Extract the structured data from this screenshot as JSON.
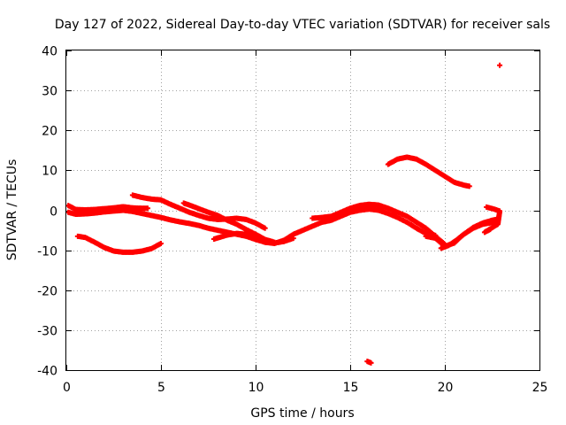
{
  "chart_data": {
    "type": "scatter",
    "title": "Day 127 of 2022, Sidereal Day-to-day VTEC variation (SDTVAR) for receiver sals",
    "xlabel": "GPS time / hours",
    "ylabel": "SDTVAR / TECUs",
    "xlim": [
      0,
      25
    ],
    "ylim": [
      -40,
      40
    ],
    "xticks": [
      0,
      5,
      10,
      15,
      20,
      25
    ],
    "yticks": [
      -40,
      -30,
      -20,
      -10,
      0,
      10,
      20,
      30,
      40
    ],
    "grid": true,
    "marker": "plus",
    "color": "#ff0000",
    "series": [
      {
        "name": "track-1",
        "points": [
          [
            0.1,
            1.2
          ],
          [
            0.5,
            0.2
          ],
          [
            1.0,
            0.1
          ],
          [
            1.5,
            0.2
          ],
          [
            2.0,
            0.4
          ],
          [
            2.5,
            0.6
          ],
          [
            3.0,
            0.9
          ],
          [
            3.5,
            0.6
          ],
          [
            4.0,
            0.5
          ],
          [
            4.3,
            0.5
          ]
        ]
      },
      {
        "name": "track-2",
        "points": [
          [
            0.1,
            -0.5
          ],
          [
            0.5,
            -1.0
          ],
          [
            1.0,
            -0.9
          ],
          [
            1.5,
            -0.7
          ],
          [
            2.0,
            -0.4
          ],
          [
            2.5,
            -0.2
          ],
          [
            3.0,
            0.0
          ],
          [
            3.5,
            -0.3
          ],
          [
            4.0,
            -0.8
          ],
          [
            4.5,
            -1.3
          ],
          [
            5.0,
            -1.8
          ],
          [
            5.5,
            -2.4
          ],
          [
            6.0,
            -2.9
          ],
          [
            6.5,
            -3.3
          ],
          [
            7.0,
            -3.8
          ],
          [
            7.5,
            -4.5
          ],
          [
            8.0,
            -5.0
          ],
          [
            8.5,
            -5.5
          ],
          [
            9.0,
            -6.0
          ],
          [
            9.5,
            -6.5
          ],
          [
            10.0,
            -7.3
          ],
          [
            10.5,
            -8.0
          ],
          [
            11.0,
            -8.2
          ],
          [
            11.5,
            -7.8
          ],
          [
            12.0,
            -7.0
          ]
        ]
      },
      {
        "name": "track-3",
        "points": [
          [
            0.6,
            -6.5
          ],
          [
            1.0,
            -6.8
          ],
          [
            1.5,
            -8.0
          ],
          [
            2.0,
            -9.3
          ],
          [
            2.5,
            -10.2
          ],
          [
            3.0,
            -10.5
          ],
          [
            3.5,
            -10.5
          ],
          [
            4.0,
            -10.2
          ],
          [
            4.5,
            -9.6
          ],
          [
            5.0,
            -8.3
          ]
        ]
      },
      {
        "name": "track-4",
        "points": [
          [
            3.5,
            3.8
          ],
          [
            4.0,
            3.2
          ],
          [
            4.5,
            2.8
          ],
          [
            5.0,
            2.6
          ],
          [
            5.5,
            1.5
          ],
          [
            6.0,
            0.5
          ],
          [
            6.5,
            -0.5
          ],
          [
            7.0,
            -1.3
          ],
          [
            7.5,
            -2.0
          ],
          [
            8.0,
            -2.3
          ],
          [
            8.5,
            -2.2
          ],
          [
            9.0,
            -2.0
          ],
          [
            9.5,
            -2.3
          ],
          [
            10.0,
            -3.2
          ],
          [
            10.5,
            -4.5
          ]
        ]
      },
      {
        "name": "track-5",
        "points": [
          [
            6.2,
            1.8
          ],
          [
            6.5,
            1.3
          ],
          [
            7.0,
            0.4
          ],
          [
            7.5,
            -0.5
          ],
          [
            8.0,
            -1.3
          ],
          [
            8.5,
            -2.5
          ],
          [
            9.0,
            -3.5
          ],
          [
            9.5,
            -4.8
          ],
          [
            10.0,
            -6.0
          ],
          [
            10.5,
            -7.3
          ],
          [
            11.0,
            -8.0
          ]
        ]
      },
      {
        "name": "track-6",
        "points": [
          [
            7.8,
            -7.2
          ],
          [
            8.5,
            -6.2
          ],
          [
            9.0,
            -5.8
          ],
          [
            9.5,
            -6.0
          ],
          [
            10.0,
            -6.8
          ],
          [
            10.5,
            -8.0
          ],
          [
            11.0,
            -8.3
          ],
          [
            11.5,
            -7.5
          ],
          [
            12.0,
            -6.0
          ],
          [
            12.5,
            -5.0
          ],
          [
            13.0,
            -4.0
          ],
          [
            13.5,
            -3.0
          ],
          [
            14.0,
            -2.5
          ],
          [
            14.5,
            -1.5
          ],
          [
            15.0,
            -0.5
          ],
          [
            15.5,
            0.0
          ],
          [
            16.0,
            0.3
          ],
          [
            16.5,
            0.0
          ],
          [
            17.0,
            -0.8
          ],
          [
            17.5,
            -1.8
          ],
          [
            18.0,
            -3.0
          ],
          [
            18.5,
            -4.5
          ],
          [
            19.0,
            -5.8
          ],
          [
            19.5,
            -6.3
          ]
        ]
      },
      {
        "name": "track-7",
        "points": [
          [
            13.0,
            -2.0
          ],
          [
            13.5,
            -1.8
          ],
          [
            14.0,
            -1.5
          ],
          [
            14.5,
            -0.5
          ],
          [
            15.0,
            0.5
          ],
          [
            15.5,
            1.2
          ],
          [
            16.0,
            1.5
          ],
          [
            16.5,
            1.3
          ],
          [
            17.0,
            0.5
          ],
          [
            17.5,
            -0.5
          ],
          [
            18.0,
            -1.5
          ],
          [
            18.5,
            -3.0
          ],
          [
            19.0,
            -4.5
          ],
          [
            19.5,
            -6.5
          ],
          [
            20.0,
            -8.5
          ]
        ]
      },
      {
        "name": "track-8",
        "points": [
          [
            17.0,
            11.5
          ],
          [
            17.5,
            12.8
          ],
          [
            18.0,
            13.3
          ],
          [
            18.5,
            12.8
          ],
          [
            19.0,
            11.5
          ],
          [
            19.5,
            10.0
          ],
          [
            20.0,
            8.5
          ],
          [
            20.5,
            7.0
          ],
          [
            21.0,
            6.3
          ],
          [
            21.3,
            6.0
          ]
        ]
      },
      {
        "name": "track-9",
        "points": [
          [
            19.0,
            -6.5
          ],
          [
            19.5,
            -7.0
          ],
          [
            20.0,
            -9.0
          ],
          [
            20.5,
            -8.2
          ],
          [
            21.0,
            -6.0
          ],
          [
            21.5,
            -4.3
          ],
          [
            22.0,
            -3.2
          ],
          [
            22.5,
            -2.5
          ],
          [
            22.8,
            -2.2
          ]
        ]
      },
      {
        "name": "track-10",
        "points": [
          [
            19.8,
            -9.5
          ],
          [
            20.2,
            -8.8
          ],
          [
            20.6,
            -7.5
          ],
          [
            21.0,
            -6.0
          ],
          [
            21.5,
            -4.5
          ],
          [
            22.0,
            -3.5
          ],
          [
            22.6,
            -3.0
          ]
        ]
      },
      {
        "name": "track-11",
        "points": [
          [
            22.2,
            0.8
          ],
          [
            22.6,
            0.3
          ],
          [
            22.9,
            -0.2
          ],
          [
            22.8,
            -3.5
          ],
          [
            22.1,
            -5.5
          ],
          [
            22.4,
            -4.8
          ]
        ]
      },
      {
        "name": "outlier-high",
        "points": [
          [
            22.9,
            36.3
          ]
        ]
      },
      {
        "name": "outlier-low",
        "points": [
          [
            15.9,
            -37.8
          ],
          [
            16.1,
            -38.2
          ]
        ]
      }
    ]
  }
}
